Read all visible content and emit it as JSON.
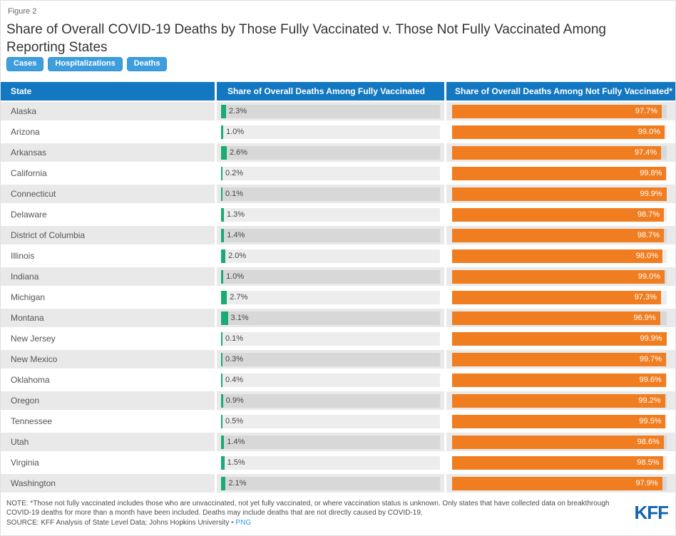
{
  "figure_label": "Figure 2",
  "title": "Share of Overall COVID-19 Deaths by Those Fully Vaccinated v. Those Not Fully Vaccinated Among Reporting States",
  "tabs": [
    {
      "label": "Cases"
    },
    {
      "label": "Hospitalizations"
    },
    {
      "label": "Deaths"
    }
  ],
  "chart_data": {
    "type": "bar",
    "orientation": "horizontal",
    "xlim": [
      0,
      100
    ],
    "columns": [
      "State",
      "Share of Overall Deaths Among Fully Vaccinated",
      "Share of Overall Deaths Among Not Fully Vaccinated*"
    ],
    "colors": {
      "fully_vaccinated_bar": "#1aaa73",
      "not_fully_vaccinated_bar": "#f07e21",
      "header_background": "#1378c1"
    },
    "rows": [
      {
        "state": "Alaska",
        "fully_vaccinated_pct": 2.3,
        "fully_vaccinated_label": "2.3%",
        "not_fully_vaccinated_pct": 97.7,
        "not_fully_vaccinated_label": "97.7%"
      },
      {
        "state": "Arizona",
        "fully_vaccinated_pct": 1.0,
        "fully_vaccinated_label": "1.0%",
        "not_fully_vaccinated_pct": 99.0,
        "not_fully_vaccinated_label": "99.0%"
      },
      {
        "state": "Arkansas",
        "fully_vaccinated_pct": 2.6,
        "fully_vaccinated_label": "2.6%",
        "not_fully_vaccinated_pct": 97.4,
        "not_fully_vaccinated_label": "97.4%"
      },
      {
        "state": "California",
        "fully_vaccinated_pct": 0.2,
        "fully_vaccinated_label": "0.2%",
        "not_fully_vaccinated_pct": 99.8,
        "not_fully_vaccinated_label": "99.8%"
      },
      {
        "state": "Connecticut",
        "fully_vaccinated_pct": 0.1,
        "fully_vaccinated_label": "0.1%",
        "not_fully_vaccinated_pct": 99.9,
        "not_fully_vaccinated_label": "99.9%"
      },
      {
        "state": "Delaware",
        "fully_vaccinated_pct": 1.3,
        "fully_vaccinated_label": "1.3%",
        "not_fully_vaccinated_pct": 98.7,
        "not_fully_vaccinated_label": "98.7%"
      },
      {
        "state": "District of Columbia",
        "fully_vaccinated_pct": 1.4,
        "fully_vaccinated_label": "1.4%",
        "not_fully_vaccinated_pct": 98.7,
        "not_fully_vaccinated_label": "98.7%"
      },
      {
        "state": "Illinois",
        "fully_vaccinated_pct": 2.0,
        "fully_vaccinated_label": "2.0%",
        "not_fully_vaccinated_pct": 98.0,
        "not_fully_vaccinated_label": "98.0%"
      },
      {
        "state": "Indiana",
        "fully_vaccinated_pct": 1.0,
        "fully_vaccinated_label": "1.0%",
        "not_fully_vaccinated_pct": 99.0,
        "not_fully_vaccinated_label": "99.0%"
      },
      {
        "state": "Michigan",
        "fully_vaccinated_pct": 2.7,
        "fully_vaccinated_label": "2.7%",
        "not_fully_vaccinated_pct": 97.3,
        "not_fully_vaccinated_label": "97.3%"
      },
      {
        "state": "Montana",
        "fully_vaccinated_pct": 3.1,
        "fully_vaccinated_label": "3.1%",
        "not_fully_vaccinated_pct": 96.9,
        "not_fully_vaccinated_label": "96.9%"
      },
      {
        "state": "New Jersey",
        "fully_vaccinated_pct": 0.1,
        "fully_vaccinated_label": "0.1%",
        "not_fully_vaccinated_pct": 99.9,
        "not_fully_vaccinated_label": "99.9%"
      },
      {
        "state": "New Mexico",
        "fully_vaccinated_pct": 0.3,
        "fully_vaccinated_label": "0.3%",
        "not_fully_vaccinated_pct": 99.7,
        "not_fully_vaccinated_label": "99.7%"
      },
      {
        "state": "Oklahoma",
        "fully_vaccinated_pct": 0.4,
        "fully_vaccinated_label": "0.4%",
        "not_fully_vaccinated_pct": 99.6,
        "not_fully_vaccinated_label": "99.6%"
      },
      {
        "state": "Oregon",
        "fully_vaccinated_pct": 0.9,
        "fully_vaccinated_label": "0.9%",
        "not_fully_vaccinated_pct": 99.2,
        "not_fully_vaccinated_label": "99.2%"
      },
      {
        "state": "Tennessee",
        "fully_vaccinated_pct": 0.5,
        "fully_vaccinated_label": "0.5%",
        "not_fully_vaccinated_pct": 99.5,
        "not_fully_vaccinated_label": "99.5%"
      },
      {
        "state": "Utah",
        "fully_vaccinated_pct": 1.4,
        "fully_vaccinated_label": "1.4%",
        "not_fully_vaccinated_pct": 98.6,
        "not_fully_vaccinated_label": "98.6%"
      },
      {
        "state": "Virginia",
        "fully_vaccinated_pct": 1.5,
        "fully_vaccinated_label": "1.5%",
        "not_fully_vaccinated_pct": 98.5,
        "not_fully_vaccinated_label": "98.5%"
      },
      {
        "state": "Washington",
        "fully_vaccinated_pct": 2.1,
        "fully_vaccinated_label": "2.1%",
        "not_fully_vaccinated_pct": 97.9,
        "not_fully_vaccinated_label": "97.9%"
      }
    ]
  },
  "footer": {
    "note": "NOTE: *Those not fully vaccinated includes those who are unvaccinated, not yet fully vaccinated, or where vaccination status is unknown. Only states that have collected data on breakthrough COVID-19 deaths for more than a month have been included. Deaths may include deaths that are not directly caused by COVID-19.",
    "source_prefix": "SOURCE: KFF Analysis of State Level Data; Johns Hopkins University",
    "separator": "•",
    "source_link": "PNG",
    "logo": "KFF"
  }
}
